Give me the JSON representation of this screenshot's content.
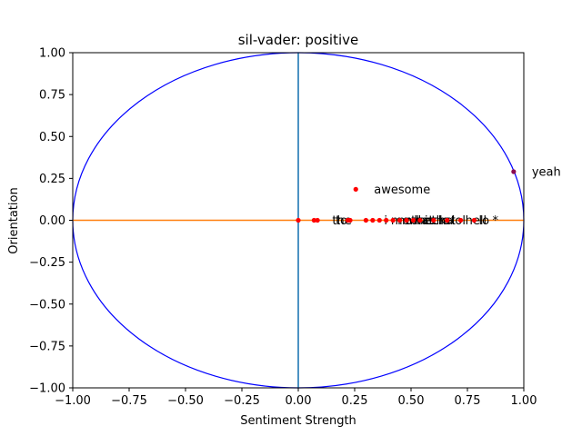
{
  "colors": {
    "circle": "#0000ff",
    "vertical_line": "#1f77b4",
    "horizontal_line": "#ff7f0e",
    "points": "#ff0000",
    "highlight_point": "#8b0a50"
  },
  "chart_data": {
    "type": "scatter",
    "title": "sil-vader: positive",
    "xlabel": "Sentiment Strength",
    "ylabel": "Orientation",
    "xlim": [
      -1.0,
      1.0
    ],
    "ylim": [
      -1.0,
      1.0
    ],
    "x_ticks": [
      "−1.00",
      "−0.75",
      "−0.50",
      "−0.25",
      "0.00",
      "0.25",
      "0.50",
      "0.75",
      "1.00"
    ],
    "y_ticks": [
      "1.00",
      "0.75",
      "0.50",
      "0.25",
      "0.00",
      "−0.25",
      "−0.50",
      "−0.75",
      "−1.00"
    ],
    "grid": false,
    "unit_circle": true,
    "reference_lines": {
      "x": 0.0,
      "y": 0.0
    },
    "points": [
      {
        "x": 0.955,
        "y": 0.29,
        "label": "yeah"
      },
      {
        "x": 0.255,
        "y": 0.185,
        "label": "awesome"
      },
      {
        "x": 0.0,
        "y": 0.0,
        "label": ""
      },
      {
        "x": 0.07,
        "y": 0.0,
        "label": "the"
      },
      {
        "x": 0.085,
        "y": 0.0,
        "label": "to"
      },
      {
        "x": 0.22,
        "y": 0.0,
        "label": ""
      },
      {
        "x": 0.23,
        "y": 0.0,
        "label": ""
      },
      {
        "x": 0.3,
        "y": 0.0,
        "label": "i"
      },
      {
        "x": 0.33,
        "y": 0.0,
        "label": "me"
      },
      {
        "x": 0.36,
        "y": 0.0,
        "label": "now"
      },
      {
        "x": 0.39,
        "y": 0.0,
        "label": "what"
      },
      {
        "x": 0.42,
        "y": 0.0,
        "label": "the"
      },
      {
        "x": 0.45,
        "y": 0.0,
        "label": "heck"
      },
      {
        "x": 0.48,
        "y": 0.0,
        "label": "is"
      },
      {
        "x": 0.51,
        "y": 0.0,
        "label": "that"
      },
      {
        "x": 0.54,
        "y": 0.0,
        "label": "ha"
      },
      {
        "x": 0.6,
        "y": 0.0,
        "label": "lol"
      },
      {
        "x": 0.66,
        "y": 0.0,
        "label": "hell"
      },
      {
        "x": 0.72,
        "y": 0.0,
        "label": "lo"
      },
      {
        "x": 0.78,
        "y": 0.0,
        "label": "*"
      }
    ]
  }
}
